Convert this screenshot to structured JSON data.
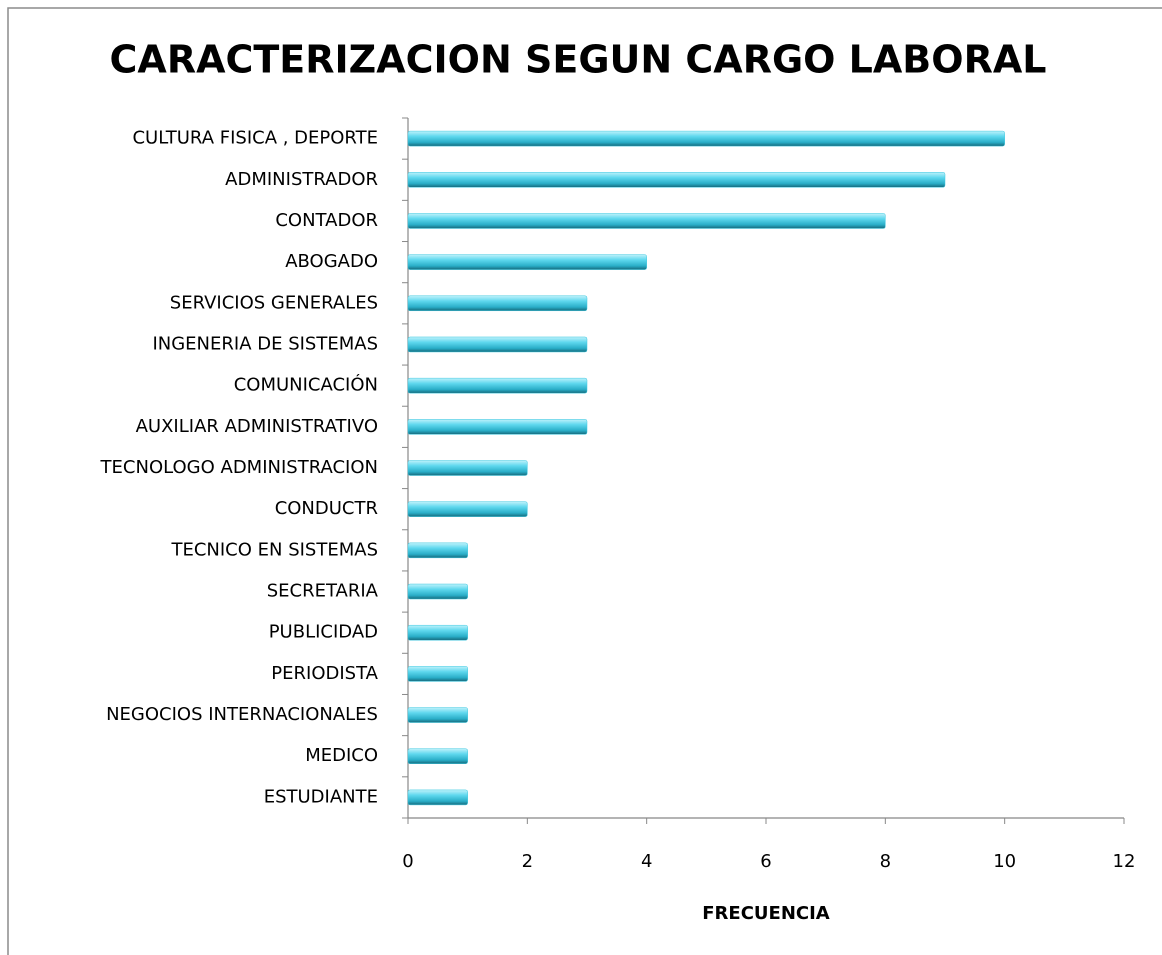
{
  "chart_data": {
    "type": "barh",
    "title": "CARACTERIZACION SEGUN CARGO LABORAL",
    "x_label": "FRECUENCIA",
    "categories": [
      "CULTURA FISICA , DEPORTE",
      "ADMINISTRADOR",
      "CONTADOR",
      "ABOGADO",
      "SERVICIOS GENERALES",
      "INGENERIA DE SISTEMAS",
      "COMUNICACIÓN",
      "AUXILIAR ADMINISTRATIVO",
      "TECNOLOGO ADMINISTRACION",
      "CONDUCTR",
      "TECNICO EN SISTEMAS",
      "SECRETARIA",
      "PUBLICIDAD",
      "PERIODISTA",
      "NEGOCIOS INTERNACIONALES",
      "MEDICO",
      "ESTUDIANTE"
    ],
    "values": [
      10,
      9,
      8,
      4,
      3,
      3,
      3,
      3,
      2,
      2,
      1,
      1,
      1,
      1,
      1,
      1,
      1
    ],
    "color": "#3fc8e0",
    "xlim": [
      0,
      12
    ],
    "xticks": [
      0,
      2,
      4,
      6,
      8,
      10,
      12
    ]
  }
}
